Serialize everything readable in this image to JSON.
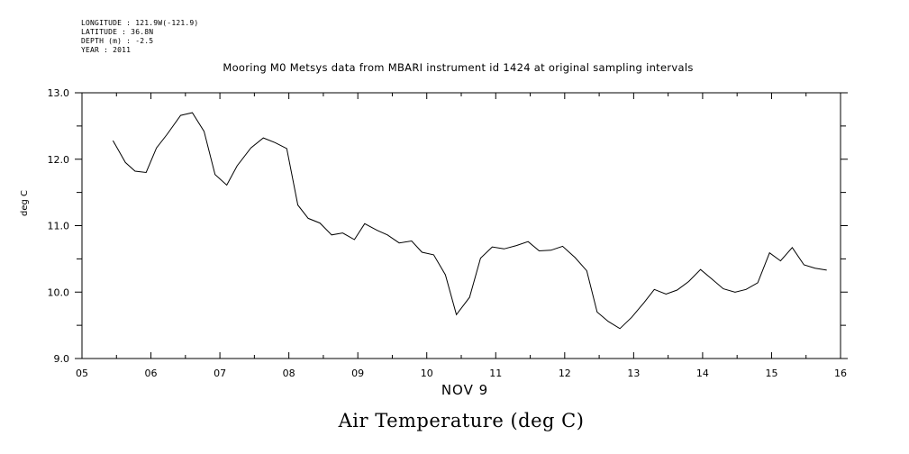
{
  "metadata": {
    "longitude": "LONGITUDE : 121.9W(-121.9)",
    "latitude": "LATITUDE : 36.8N",
    "depth": "DEPTH (m) : -2.5",
    "year": "YEAR : 2011"
  },
  "chart_data": {
    "type": "line",
    "title": "Mooring M0 Metsys data from MBARI instrument id 1424 at original sampling intervals",
    "ylabel": "deg C",
    "xlabel": "NOV  9",
    "bottom_title": "Air Temperature (deg C)",
    "xlim": [
      5,
      16
    ],
    "ylim": [
      9.0,
      13.0
    ],
    "x_ticks": [
      "05",
      "06",
      "07",
      "08",
      "09",
      "10",
      "11",
      "12",
      "13",
      "14",
      "15",
      "16"
    ],
    "y_ticks": [
      "9.0",
      "10.0",
      "11.0",
      "12.0",
      "13.0"
    ],
    "grid": false,
    "series": [
      {
        "x": [
          5.45,
          5.63,
          5.77,
          5.93,
          6.08,
          6.23,
          6.43,
          6.6,
          6.77,
          6.93,
          7.1,
          7.25,
          7.45,
          7.63,
          7.8,
          7.97,
          8.13,
          8.28,
          8.45,
          8.62,
          8.78,
          8.95,
          9.1,
          9.28,
          9.43,
          9.6,
          9.78,
          9.93,
          10.1,
          10.27,
          10.43,
          10.62,
          10.78,
          10.95,
          11.12,
          11.3,
          11.47,
          11.63,
          11.8,
          11.97,
          12.15,
          12.32,
          12.47,
          12.63,
          12.8,
          12.97,
          13.15,
          13.3,
          13.47,
          13.63,
          13.8,
          13.97,
          14.13,
          14.3,
          14.47,
          14.63,
          14.8,
          14.97,
          15.13,
          15.3,
          15.47,
          15.63,
          15.8
        ],
        "y": [
          12.28,
          11.95,
          11.82,
          11.8,
          12.17,
          12.37,
          12.66,
          12.7,
          12.42,
          11.77,
          11.61,
          11.9,
          12.17,
          12.32,
          12.25,
          12.16,
          11.31,
          11.11,
          11.04,
          10.86,
          10.89,
          10.79,
          11.03,
          10.93,
          10.86,
          10.74,
          10.77,
          10.6,
          10.56,
          10.26,
          9.66,
          9.92,
          10.51,
          10.68,
          10.65,
          10.7,
          10.76,
          10.62,
          10.63,
          10.69,
          10.52,
          10.32,
          9.7,
          9.56,
          9.45,
          9.62,
          9.84,
          10.04,
          9.97,
          10.03,
          10.16,
          10.34,
          10.2,
          10.05,
          10.0,
          10.04,
          10.14,
          10.59,
          10.47,
          10.67,
          10.41,
          10.36,
          10.33
        ]
      }
    ],
    "line_color": "#000000"
  }
}
